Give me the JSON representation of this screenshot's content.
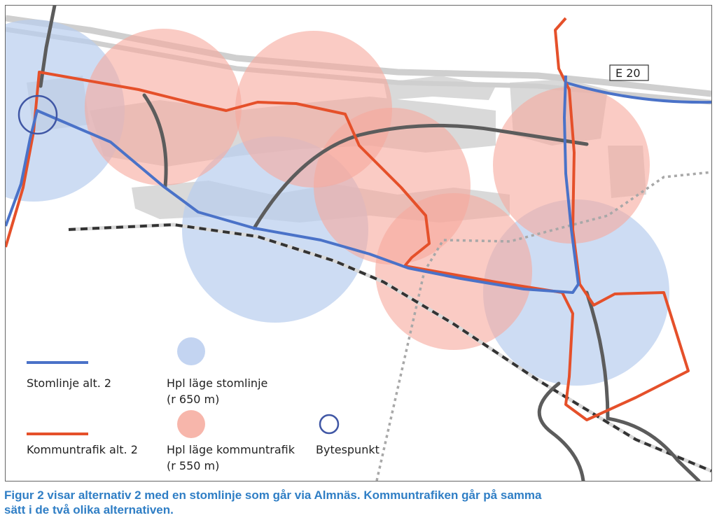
{
  "map": {
    "road_label": "E 20",
    "colors": {
      "stomlinje": "#4a72c8",
      "kommuntrafik": "#e5502a",
      "stomlinje_circle": "#b8cdee",
      "kommuntrafik_circle": "#f6b0a5",
      "road_dark": "#5a5a5a",
      "building": "#d6d6d6"
    }
  },
  "legend": {
    "stomlinje_label": "Stomlinje alt. 2",
    "kommuntrafik_label": "Kommuntrafik alt. 2",
    "hpl_stom_line1": "Hpl läge stomlinje",
    "hpl_stom_line2": "(r 650 m)",
    "hpl_komm_line1": "Hpl läge kommuntrafik",
    "hpl_komm_line2": "(r 550 m)",
    "bytespunkt_label": "Bytespunkt"
  },
  "caption": {
    "line1": "Figur 2   visar alternativ 2 med en stomlinje som går via Almnäs. Kommuntrafiken går på samma",
    "line2": "sätt i de två olika alternativen."
  }
}
